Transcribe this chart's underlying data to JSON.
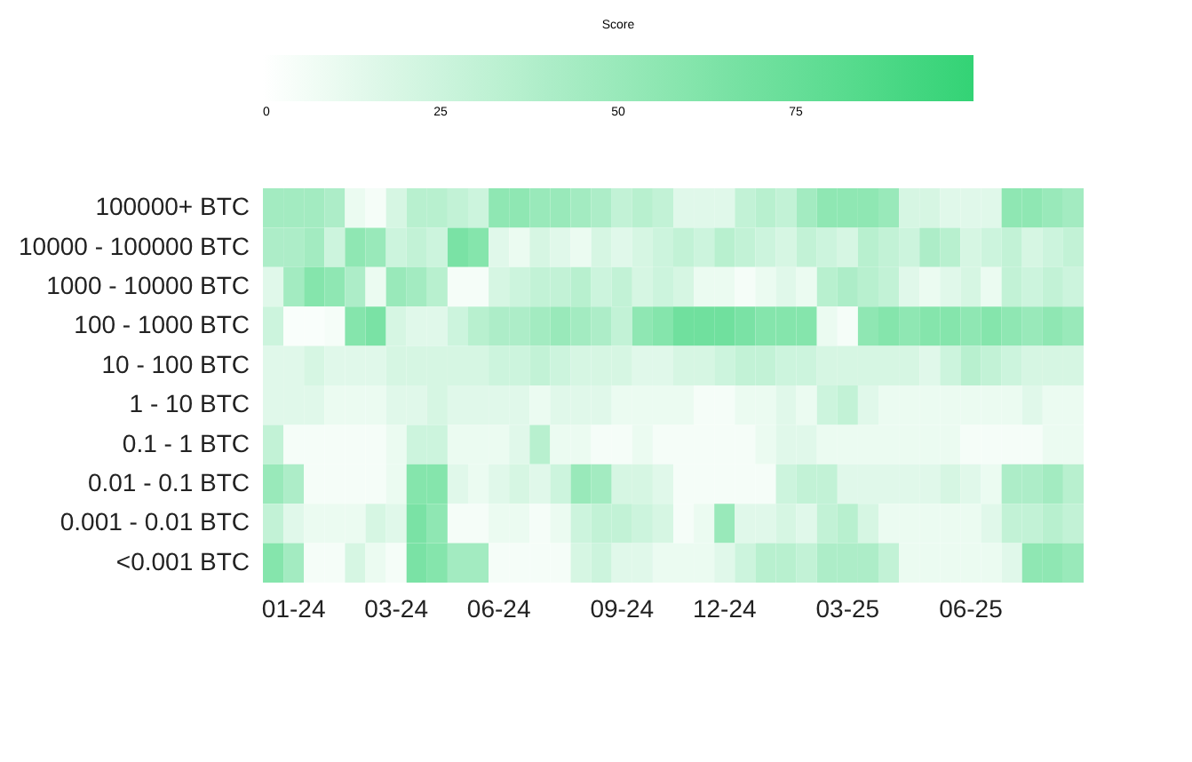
{
  "chart_data": {
    "type": "heatmap",
    "legend_title": "Score",
    "categories": [
      null,
      "01-24",
      null,
      null,
      null,
      null,
      "03-24",
      null,
      null,
      null,
      null,
      "06-24",
      null,
      null,
      null,
      null,
      null,
      "09-24",
      null,
      null,
      null,
      null,
      "12-24",
      null,
      null,
      null,
      null,
      null,
      "03-25",
      null,
      null,
      null,
      null,
      null,
      "06-25",
      null,
      null,
      null,
      null,
      null
    ],
    "y_categories": [
      "100000+ BTC",
      "10000 - 100000 BTC",
      "1000 - 10000 BTC",
      "100 - 1000 BTC",
      "10 - 100 BTC",
      "1 - 10 BTC",
      "0.1 - 1 BTC",
      "0.01 - 0.1 BTC",
      "0.001 - 0.01 BTC",
      "<0.001 BTC"
    ],
    "cells": [
      [
        45,
        45,
        45,
        40,
        10,
        5,
        20,
        35,
        35,
        30,
        25,
        55,
        55,
        50,
        50,
        45,
        40,
        30,
        35,
        30,
        15,
        15,
        15,
        30,
        35,
        30,
        45,
        55,
        55,
        55,
        50,
        20,
        20,
        15,
        15,
        15,
        55,
        55,
        50,
        45
      ],
      [
        40,
        40,
        45,
        25,
        55,
        50,
        25,
        30,
        25,
        65,
        60,
        15,
        10,
        20,
        15,
        10,
        20,
        15,
        20,
        25,
        30,
        25,
        35,
        30,
        25,
        20,
        30,
        25,
        20,
        35,
        30,
        25,
        40,
        35,
        20,
        25,
        30,
        20,
        25,
        30
      ],
      [
        15,
        45,
        60,
        55,
        40,
        10,
        50,
        45,
        35,
        5,
        5,
        20,
        25,
        30,
        30,
        35,
        25,
        30,
        20,
        25,
        20,
        10,
        10,
        5,
        10,
        15,
        10,
        35,
        40,
        35,
        30,
        15,
        10,
        15,
        20,
        10,
        30,
        25,
        30,
        25
      ],
      [
        25,
        3,
        3,
        5,
        60,
        65,
        20,
        15,
        15,
        25,
        35,
        40,
        40,
        45,
        50,
        45,
        40,
        30,
        55,
        60,
        70,
        70,
        70,
        65,
        60,
        60,
        60,
        10,
        5,
        55,
        60,
        55,
        60,
        60,
        55,
        60,
        55,
        50,
        55,
        50
      ],
      [
        15,
        15,
        20,
        15,
        15,
        15,
        20,
        20,
        20,
        20,
        20,
        25,
        25,
        30,
        25,
        20,
        20,
        20,
        15,
        15,
        20,
        20,
        25,
        30,
        30,
        25,
        25,
        20,
        20,
        20,
        20,
        20,
        15,
        25,
        35,
        30,
        25,
        20,
        20,
        20
      ],
      [
        15,
        15,
        15,
        10,
        10,
        10,
        15,
        15,
        20,
        15,
        15,
        15,
        15,
        10,
        15,
        15,
        15,
        10,
        10,
        10,
        10,
        5,
        5,
        10,
        10,
        15,
        10,
        25,
        30,
        15,
        10,
        10,
        10,
        10,
        10,
        10,
        10,
        15,
        10,
        10
      ],
      [
        30,
        5,
        5,
        5,
        5,
        5,
        10,
        25,
        25,
        10,
        10,
        10,
        15,
        35,
        10,
        10,
        5,
        5,
        10,
        5,
        5,
        5,
        5,
        5,
        10,
        15,
        15,
        10,
        10,
        10,
        10,
        10,
        10,
        10,
        5,
        5,
        5,
        5,
        10,
        10
      ],
      [
        50,
        40,
        5,
        5,
        5,
        5,
        10,
        60,
        60,
        15,
        10,
        15,
        20,
        15,
        25,
        50,
        45,
        20,
        20,
        15,
        5,
        5,
        5,
        5,
        5,
        25,
        30,
        30,
        15,
        15,
        15,
        15,
        15,
        20,
        15,
        10,
        40,
        40,
        45,
        35
      ],
      [
        30,
        15,
        10,
        10,
        10,
        20,
        15,
        65,
        55,
        5,
        5,
        10,
        10,
        5,
        10,
        25,
        30,
        30,
        25,
        20,
        5,
        10,
        50,
        15,
        15,
        20,
        15,
        30,
        35,
        20,
        10,
        10,
        10,
        10,
        10,
        15,
        30,
        30,
        35,
        30
      ],
      [
        60,
        45,
        5,
        5,
        20,
        10,
        5,
        65,
        60,
        45,
        45,
        5,
        5,
        5,
        5,
        20,
        25,
        15,
        15,
        10,
        10,
        10,
        15,
        25,
        35,
        35,
        30,
        40,
        40,
        40,
        30,
        10,
        10,
        10,
        10,
        10,
        15,
        55,
        55,
        50
      ]
    ],
    "clim": [
      0,
      100
    ],
    "cticks": [
      0,
      25,
      50,
      75
    ],
    "colors": [
      "#ffffff",
      "#33d375"
    ]
  }
}
